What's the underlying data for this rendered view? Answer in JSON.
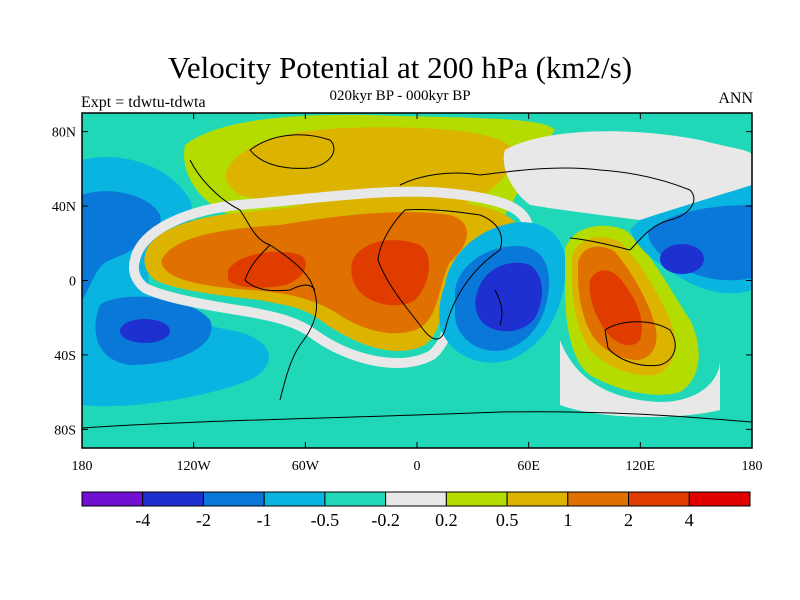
{
  "header": {
    "title": "Velocity Potential at 200 hPa (km2/s)",
    "subtitle": "020kyr BP - 000kyr BP",
    "left_label": "Expt = tdwtu-tdwta",
    "right_label": "ANN"
  },
  "axes": {
    "x_ticks": [
      "180",
      "120W",
      "60W",
      "0",
      "60E",
      "120E",
      "180"
    ],
    "x_values": [
      -180,
      -120,
      -60,
      0,
      60,
      120,
      180
    ],
    "y_ticks": [
      "80N",
      "40N",
      "0",
      "40S",
      "80S"
    ],
    "y_values": [
      80,
      40,
      0,
      -40,
      -80
    ],
    "lon_range": [
      -180,
      180
    ],
    "lat_range": [
      -90,
      90
    ]
  },
  "colorbar": {
    "colors": [
      "#7010d0",
      "#1f30d0",
      "#0a78d8",
      "#0ab4e0",
      "#20d8b8",
      "#e8e8e8",
      "#b4dc00",
      "#dcb400",
      "#e07000",
      "#e03c00",
      "#e00000"
    ],
    "labels": [
      "-4",
      "-2",
      "-1",
      "-0.5",
      "-0.2",
      "0.2",
      "0.5",
      "1",
      "2",
      "4"
    ]
  },
  "chart_data": {
    "type": "heatmap",
    "title": "Velocity Potential at 200 hPa (km2/s)",
    "subtitle": "020kyr BP - 000kyr BP",
    "levels": [
      -4,
      -2,
      -1,
      -0.5,
      -0.2,
      0.2,
      0.5,
      1,
      2,
      4
    ],
    "fields": [
      {
        "lon": -20,
        "lat": 5,
        "level": 2
      },
      {
        "lon": -95,
        "lat": 5,
        "level": 2
      },
      {
        "lon": 55,
        "lat": -15,
        "level": -2
      },
      {
        "lon": 140,
        "lat": 10,
        "level": -2
      },
      {
        "lon": -155,
        "lat": -25,
        "level": -2
      },
      {
        "lon": 105,
        "lat": -15,
        "level": 2
      }
    ]
  }
}
